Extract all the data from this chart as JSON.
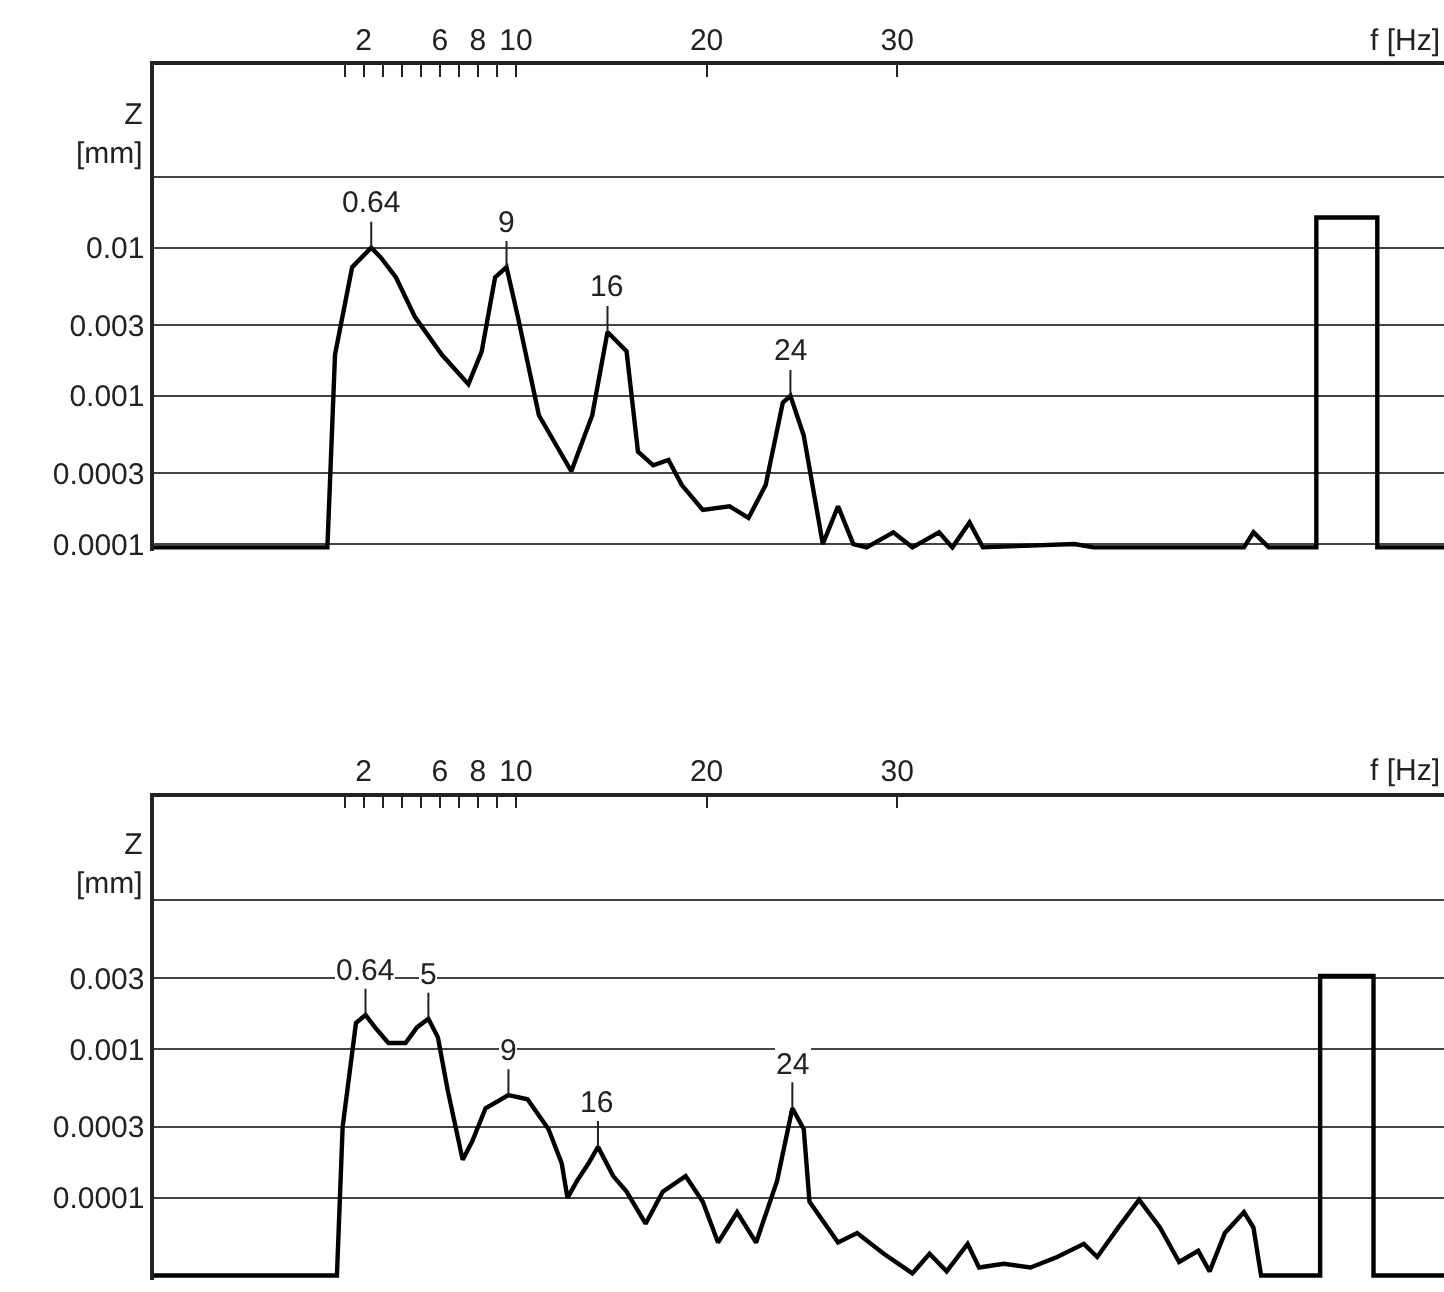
{
  "chart_data": [
    {
      "type": "line",
      "xlabel": "f [Hz]",
      "ylabel": "Z\n[mm]",
      "log": true,
      "grid": "y",
      "xlim": [
        -9,
        58.7
      ],
      "xticks": [
        {
          "value": 1,
          "label": null
        },
        2,
        {
          "value": 3,
          "label": null
        },
        {
          "value": 4,
          "label": null
        },
        {
          "value": 5,
          "label": null
        },
        6,
        {
          "value": 7,
          "label": null
        },
        8,
        {
          "value": 9,
          "label": null
        },
        10,
        20,
        30
      ],
      "ylim": [
        9e-05,
        0.17
      ],
      "yticks": [
        0.0001,
        0.0003,
        0.001,
        0.003,
        0.01,
        {
          "value": 0.03,
          "label": null
        }
      ],
      "series": [
        {
          "color": "#000000",
          "x": [
            -9,
            0.1,
            0.5,
            1.4,
            2.4,
            2.9,
            3.7,
            4.7,
            6.1,
            7.5,
            8.2,
            8.9,
            9.5,
            10.1,
            11.2,
            12.9,
            14.0,
            14.8,
            15.8,
            16.4,
            17.2,
            18.0,
            18.7,
            19.8,
            21.2,
            22.2,
            23.1,
            24.0,
            24.4,
            25.1,
            26.1,
            26.9,
            27.7,
            28.4,
            29.8,
            30.8,
            32.2,
            32.9,
            33.8,
            34.5,
            39.3,
            40.3,
            48.2,
            48.7,
            49.5,
            52.0,
            52.0,
            55.2,
            55.2,
            58.7
          ],
          "values": [
            9.5e-05,
            9.5e-05,
            0.0019,
            0.0074,
            0.01,
            0.0086,
            0.0063,
            0.0034,
            0.0019,
            0.0012,
            0.002,
            0.0063,
            0.0074,
            0.0034,
            0.00074,
            0.00031,
            0.00074,
            0.0027,
            0.002,
            0.00042,
            0.00034,
            0.00037,
            0.00025,
            0.00017,
            0.00018,
            0.00015,
            0.00025,
            0.0009,
            0.001,
            0.00054,
            0.0001,
            0.00018,
            0.0001,
            9.5e-05,
            0.00012,
            9.5e-05,
            0.00012,
            9.5e-05,
            0.00014,
            9.5e-05,
            0.0001,
            9.5e-05,
            9.5e-05,
            0.00012,
            9.5e-05,
            9.5e-05,
            0.016,
            0.016,
            9.5e-05,
            9.5e-05
          ]
        }
      ],
      "annotations": [
        {
          "text": "0.64",
          "x": 2.4,
          "y": 0.01
        },
        {
          "text": "9",
          "x": 9.5,
          "y": 0.0074
        },
        {
          "text": "16",
          "x": 14.8,
          "y": 0.0027
        },
        {
          "text": "24",
          "x": 24.4,
          "y": 0.001
        }
      ]
    },
    {
      "type": "line",
      "xlabel": "f [Hz]",
      "ylabel": "Z\n[mm]",
      "log": true,
      "grid": "y",
      "xlim": [
        -9,
        58.7
      ],
      "xticks": [
        {
          "value": 1,
          "label": null
        },
        2,
        {
          "value": 3,
          "label": null
        },
        {
          "value": 4,
          "label": null
        },
        {
          "value": 5,
          "label": null
        },
        6,
        {
          "value": 7,
          "label": null
        },
        8,
        {
          "value": 9,
          "label": null
        },
        10,
        20,
        30
      ],
      "ylim": [
        2.8e-05,
        0.05
      ],
      "yticks": [
        0.0001,
        0.0003,
        0.001,
        0.003,
        {
          "value": 0.01,
          "label": null
        }
      ],
      "series": [
        {
          "color": "#000000",
          "x": [
            -9,
            0.6,
            0.9,
            1.6,
            2.1,
            2.6,
            3.3,
            4.2,
            4.8,
            5.4,
            5.9,
            6.4,
            7.2,
            7.7,
            8.4,
            9.6,
            10.6,
            11.7,
            12.4,
            12.7,
            13.2,
            13.8,
            14.3,
            15.1,
            15.8,
            16.8,
            17.7,
            18.9,
            19.8,
            20.6,
            21.6,
            22.6,
            23.7,
            24.5,
            25.1,
            25.4,
            26.1,
            26.9,
            27.9,
            29.3,
            30.8,
            31.7,
            32.6,
            33.7,
            34.3,
            35.6,
            37.0,
            38.4,
            39.8,
            40.5,
            41.6,
            42.7,
            43.8,
            44.8,
            45.8,
            46.4,
            47.2,
            48.2,
            48.7,
            49.1,
            52.2,
            52.2,
            55.0,
            55.0,
            58.7
          ],
          "values": [
            3e-05,
            3e-05,
            0.0003,
            0.0015,
            0.0017,
            0.0014,
            0.0011,
            0.0011,
            0.0014,
            0.0016,
            0.0012,
            0.00054,
            0.00018,
            0.00024,
            0.0004,
            0.00049,
            0.00046,
            0.00029,
            0.00017,
            0.0001,
            0.00013,
            0.00017,
            0.00022,
            0.00014,
            0.00011,
            6.7e-05,
            0.00011,
            0.00014,
            9.4e-05,
            5e-05,
            8e-05,
            5e-05,
            0.00013,
            0.0004,
            0.00029,
            9.4e-05,
            7e-05,
            5e-05,
            5.8e-05,
            4.2e-05,
            3.1e-05,
            4.2e-05,
            3.2e-05,
            4.9e-05,
            3.4e-05,
            3.6e-05,
            3.4e-05,
            4e-05,
            4.9e-05,
            4e-05,
            6.3e-05,
            9.7e-05,
            6.3e-05,
            3.7e-05,
            4.4e-05,
            3.2e-05,
            5.8e-05,
            8e-05,
            6.3e-05,
            3e-05,
            3e-05,
            0.0031,
            0.0031,
            3e-05,
            3e-05
          ]
        }
      ],
      "annotations": [
        {
          "text": "0.64",
          "x": 2.1,
          "y": 0.0017
        },
        {
          "text": "5",
          "x": 5.4,
          "y": 0.0016
        },
        {
          "text": "9",
          "x": 9.6,
          "y": 0.00049
        },
        {
          "text": "16",
          "x": 14.3,
          "y": 0.00022
        },
        {
          "text": "24",
          "x": 24.5,
          "y": 0.0004
        }
      ]
    }
  ]
}
